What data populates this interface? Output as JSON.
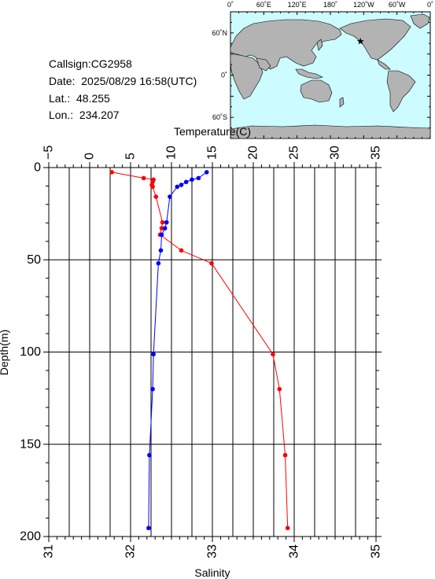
{
  "info": {
    "callsign": "Callsign:CG2958",
    "date": "Date:  2025/08/29 16:58(UTC)",
    "lat": "Lat.:  48.255",
    "lon": "Lon.:  234.207"
  },
  "map": {
    "lon_labels": [
      "0˚",
      "60˚E",
      "120˚E",
      "180˚",
      "120˚W",
      "60˚W",
      "0˚"
    ],
    "lat_labels": [
      "60˚N",
      "0˚",
      "60˚S"
    ],
    "ocean_color": "#ccfcff",
    "land_color": "#b3b3b3",
    "marker_color": "#ff0000",
    "marker_icon": "star-icon",
    "station_lat": 48.255,
    "station_lon": 234.207
  },
  "chart_data": {
    "type": "line",
    "top_axis_label": "Temperature(C)",
    "bottom_axis_label": "Salinity",
    "ylabel": "Depth(m)",
    "temperature_ticks": [
      "−5",
      "0",
      "5",
      "10",
      "15",
      "20",
      "25",
      "30",
      "35"
    ],
    "salinity_ticks": [
      "31",
      "32",
      "33",
      "34",
      "35"
    ],
    "depth_ticks": [
      "0",
      "50",
      "100",
      "150",
      "200"
    ],
    "xlim_temperature": [
      -5,
      35
    ],
    "xlim_salinity": [
      31,
      35
    ],
    "ylim_depth": [
      0,
      200
    ],
    "y_inverted": true,
    "grid": true,
    "temperature": {
      "color": "#ff0000",
      "points": [
        [
          2.7,
          2.5
        ],
        [
          6.6,
          5.7
        ],
        [
          7.8,
          6.5
        ],
        [
          7.7,
          7.8
        ],
        [
          7.6,
          9.4
        ],
        [
          7.7,
          10.4
        ],
        [
          8.1,
          15.8
        ],
        [
          8.9,
          29.7
        ],
        [
          8.8,
          32.9
        ],
        [
          8.6,
          36.4
        ],
        [
          11.2,
          44.9
        ],
        [
          14.9,
          51.9
        ],
        [
          22.4,
          101.2
        ],
        [
          23.2,
          120.1
        ],
        [
          23.9,
          155.9
        ],
        [
          24.2,
          195.4
        ]
      ]
    },
    "salinity": {
      "color": "#0000ff",
      "points": [
        [
          32.93,
          2.5
        ],
        [
          32.83,
          5.7
        ],
        [
          32.75,
          6.5
        ],
        [
          32.68,
          7.8
        ],
        [
          32.62,
          9.4
        ],
        [
          32.57,
          10.4
        ],
        [
          32.48,
          15.8
        ],
        [
          32.44,
          29.7
        ],
        [
          32.42,
          32.9
        ],
        [
          32.38,
          36.4
        ],
        [
          32.37,
          44.9
        ],
        [
          32.34,
          51.9
        ],
        [
          32.28,
          101.2
        ],
        [
          32.27,
          120.1
        ],
        [
          32.23,
          155.9
        ],
        [
          32.22,
          195.4
        ]
      ]
    }
  }
}
